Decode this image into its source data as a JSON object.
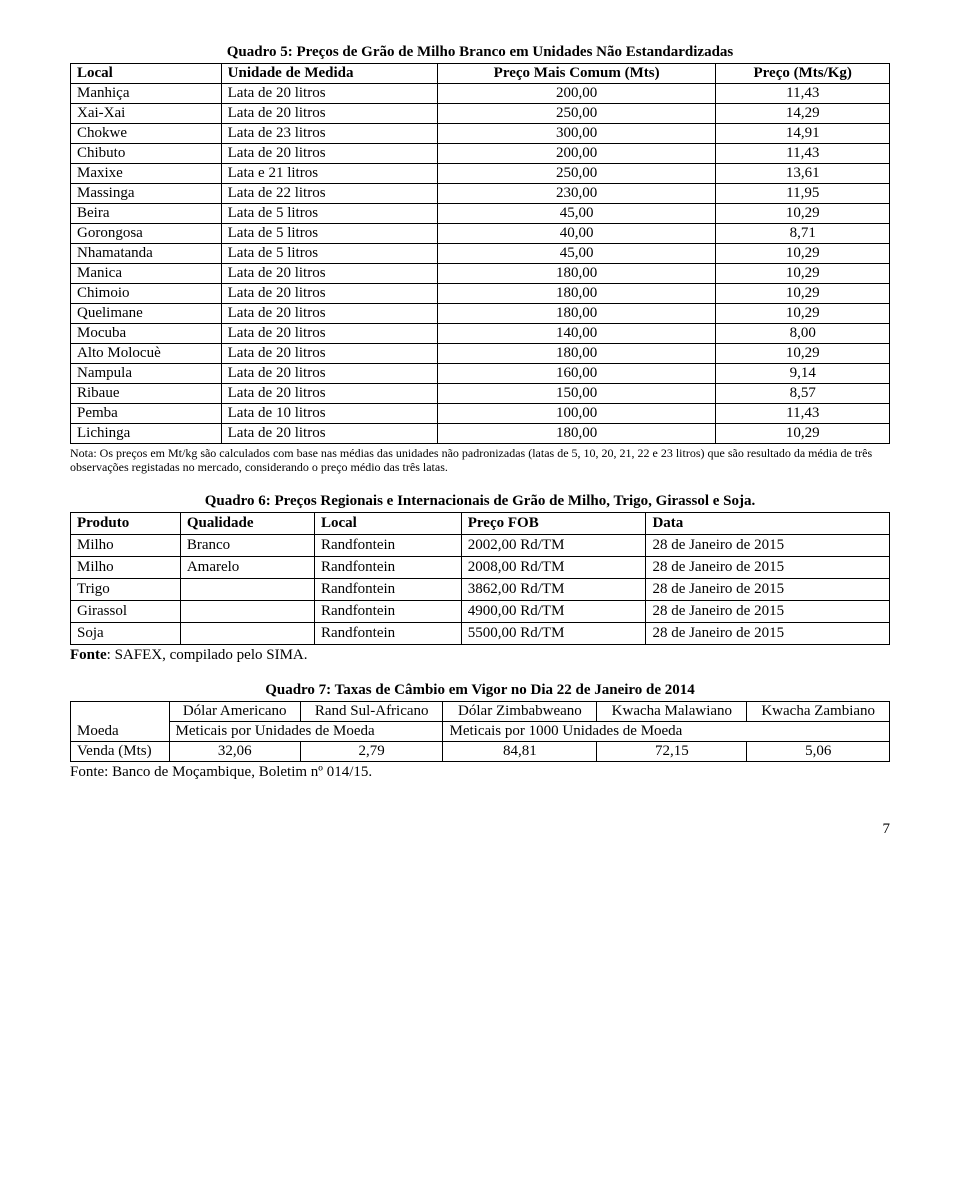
{
  "quadro5": {
    "title": "Quadro 5: Preços de Grão de Milho Branco em Unidades Não Estandardizadas",
    "headers": [
      "Local",
      "Unidade de Medida",
      "Preço Mais Comum (Mts)",
      "Preço  (Mts/Kg)"
    ],
    "rows": [
      [
        "Manhiça",
        "Lata de 20 litros",
        "200,00",
        "11,43"
      ],
      [
        "Xai-Xai",
        "Lata de 20 litros",
        "250,00",
        "14,29"
      ],
      [
        "Chokwe",
        "Lata de 23 litros",
        "300,00",
        "14,91"
      ],
      [
        "Chibuto",
        "Lata de 20 litros",
        "200,00",
        "11,43"
      ],
      [
        "Maxixe",
        "Lata e 21 litros",
        "250,00",
        "13,61"
      ],
      [
        "Massinga",
        "Lata de 22 litros",
        "230,00",
        "11,95"
      ],
      [
        "Beira",
        "Lata de 5 litros",
        "45,00",
        "10,29"
      ],
      [
        "Gorongosa",
        "Lata de 5 litros",
        "40,00",
        "8,71"
      ],
      [
        "Nhamatanda",
        "Lata de 5 litros",
        "45,00",
        "10,29"
      ],
      [
        "Manica",
        "Lata de 20 litros",
        "180,00",
        "10,29"
      ],
      [
        "Chimoio",
        "Lata de 20 litros",
        "180,00",
        "10,29"
      ],
      [
        "Quelimane",
        "Lata de 20 litros",
        "180,00",
        "10,29"
      ],
      [
        "Mocuba",
        "Lata de 20 litros",
        "140,00",
        "8,00"
      ],
      [
        "Alto Molocuè",
        "Lata de 20 litros",
        "180,00",
        "10,29"
      ],
      [
        "Nampula",
        "Lata de 20 litros",
        "160,00",
        "9,14"
      ],
      [
        "Ribaue",
        "Lata de 20 litros",
        "150,00",
        "8,57"
      ],
      [
        "Pemba",
        "Lata de 10 litros",
        "100,00",
        "11,43"
      ],
      [
        "Lichinga",
        "Lata de 20 litros",
        "180,00",
        "10,29"
      ]
    ],
    "note": "Nota: Os preços em Mt/kg são calculados com base nas médias das unidades não padronizadas (latas de 5, 10, 20, 21, 22 e 23 litros) que são resultado da média de três observações registadas no mercado, considerando o preço médio das três latas."
  },
  "quadro6": {
    "title": "Quadro 6: Preços Regionais e Internacionais de Grão de Milho, Trigo, Girassol e Soja.",
    "headers": [
      "Produto",
      "Qualidade",
      "Local",
      "Preço FOB",
      "Data"
    ],
    "rows": [
      [
        "Milho",
        "Branco",
        "Randfontein",
        "2002,00 Rd/TM",
        "28 de Janeiro de 2015"
      ],
      [
        "Milho",
        "Amarelo",
        "Randfontein",
        "2008,00 Rd/TM",
        "28 de Janeiro de 2015"
      ],
      [
        "Trigo",
        "",
        "Randfontein",
        "3862,00 Rd/TM",
        "28 de Janeiro de 2015"
      ],
      [
        "Girassol",
        "",
        "Randfontein",
        "4900,00 Rd/TM",
        "28 de Janeiro de 2015"
      ],
      [
        "Soja",
        "",
        "Randfontein",
        "5500,00 Rd/TM",
        "28 de Janeiro de 2015"
      ]
    ],
    "source_prefix": "Fonte",
    "source_rest": ": SAFEX, compilado pelo SIMA."
  },
  "quadro7": {
    "title": "Quadro 7: Taxas de Câmbio em Vigor no Dia 22 de Janeiro de 2014",
    "row1": [
      "Moeda",
      "Dólar Americano",
      "Rand Sul-Africano",
      "Dólar Zimbabweano",
      "Kwacha Malawiano",
      "Kwacha Zambiano"
    ],
    "row2a": "Meticais por Unidades de Moeda",
    "row2b": "Meticais por 1000 Unidades de Moeda",
    "data": [
      "Venda (Mts)",
      "32,06",
      "2,79",
      "84,81",
      "72,15",
      "5,06"
    ],
    "source": "Fonte: Banco de Moçambique, Boletim nº 014/15."
  },
  "pagenum": "7"
}
